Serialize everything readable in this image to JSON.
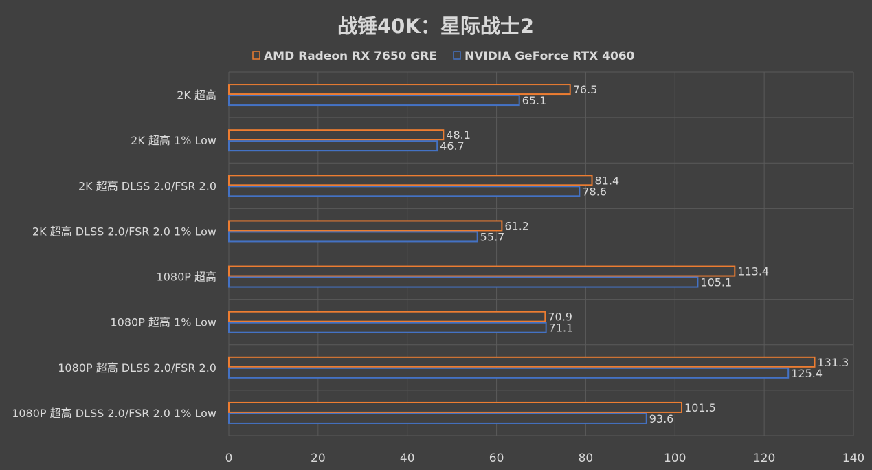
{
  "chart_data": {
    "type": "bar",
    "orientation": "horizontal",
    "title": "战锤40K：星际战士2",
    "xlim": [
      0,
      140
    ],
    "xticks": [
      0,
      20,
      40,
      60,
      80,
      100,
      120,
      140
    ],
    "grid": true,
    "legend_position": "top",
    "categories": [
      "2K 超高",
      "2K 超高 1% Low",
      "2K 超高 DLSS 2.0/FSR 2.0",
      "2K 超高 DLSS 2.0/FSR 2.0 1% Low",
      "1080P 超高",
      "1080P 超高 1% Low",
      "1080P 超高 DLSS 2.0/FSR 2.0",
      "1080P 超高 DLSS 2.0/FSR 2.0 1% Low"
    ],
    "series": [
      {
        "name": "AMD Radeon RX 7650 GRE",
        "color": "#ED7D31",
        "values": [
          76.5,
          48.1,
          81.4,
          61.2,
          113.4,
          70.9,
          131.3,
          101.5
        ]
      },
      {
        "name": "NVIDIA GeForce RTX 4060",
        "color": "#4472C4",
        "values": [
          65.1,
          46.7,
          78.6,
          55.7,
          105.1,
          71.1,
          125.4,
          93.6
        ]
      }
    ]
  }
}
